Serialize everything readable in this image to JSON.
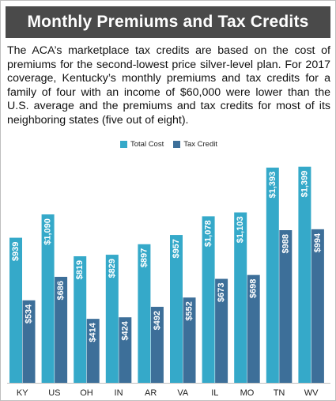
{
  "header": {
    "title": "Monthly Premiums and Tax Credits",
    "description": "The ACA’s marketplace tax credits are based on the cost of premiums for the second-lowest price silver-level plan. For 2017 coverage, Kentucky’s monthly premiums and tax credits for a family of four with an income of $60,000 were lower than the U.S. average and the premiums and tax credits for most of its neighboring states (five out of eight)."
  },
  "chart_data": {
    "type": "bar",
    "title": "Monthly Premiums and Tax Credits",
    "xlabel": "",
    "ylabel": "",
    "ylim": [
      0,
      1500
    ],
    "grid": false,
    "legend_position": "top-center",
    "categories": [
      "KY",
      "US",
      "OH",
      "IN",
      "AR",
      "VA",
      "IL",
      "MO",
      "TN",
      "WV"
    ],
    "series": [
      {
        "name": "Total Cost",
        "color": "#35a9c9",
        "values": [
          939,
          1090,
          819,
          829,
          897,
          957,
          1078,
          1103,
          1393,
          1399
        ],
        "labels": [
          "$939",
          "$1,090",
          "$819",
          "$829",
          "$897",
          "$957",
          "$1,078",
          "$1,103",
          "$1,393",
          "$1,399"
        ]
      },
      {
        "name": "Tax Credit",
        "color": "#3d6f99",
        "values": [
          534,
          686,
          414,
          424,
          492,
          552,
          673,
          698,
          988,
          994
        ],
        "labels": [
          "$534",
          "$686",
          "$414",
          "$424",
          "$492",
          "$552",
          "$673",
          "$698",
          "$988",
          "$994"
        ]
      }
    ]
  }
}
